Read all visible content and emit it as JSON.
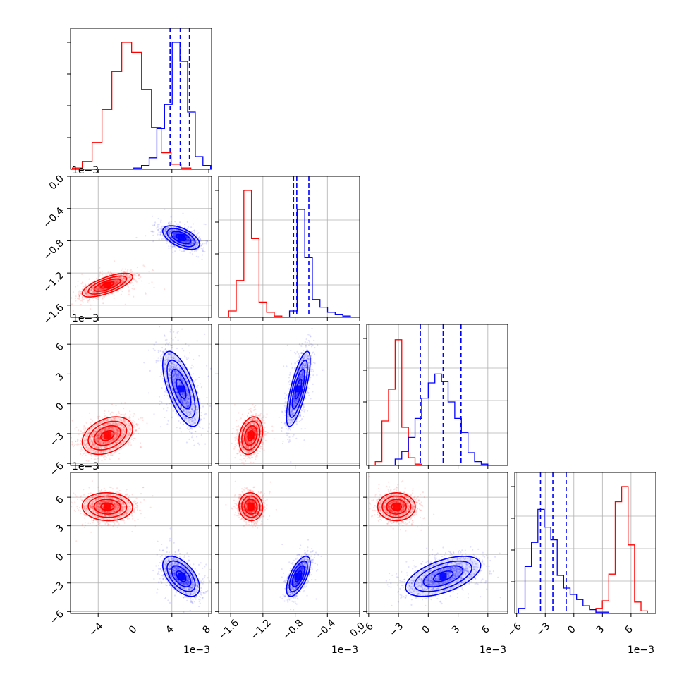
{
  "chart_data": {
    "type": "corner",
    "colors": {
      "red": "#ff0000",
      "blue": "#0000ff"
    },
    "series_order": [
      "red",
      "blue"
    ],
    "params": [
      {
        "id": "p0",
        "range": [
          -7,
          8.3
        ],
        "ticks": [
          -4,
          0,
          4,
          8
        ],
        "tick_labels": [
          "−4",
          "0",
          "4",
          "8"
        ],
        "offset": "1e−3"
      },
      {
        "id": "p1",
        "range": [
          -1.75,
          0.0
        ],
        "ticks": [
          -1.6,
          -1.2,
          -0.8,
          -0.4,
          0.0
        ],
        "tick_labels": [
          "−1.6",
          "−1.2",
          "−0.8",
          "−0.4",
          "0.0"
        ],
        "offset": "1e−3"
      },
      {
        "id": "p2",
        "range": [
          -6.2,
          8.0
        ],
        "ticks": [
          -6,
          -3,
          0,
          3,
          6
        ],
        "tick_labels": [
          "−6",
          "−3",
          "0",
          "3",
          "6"
        ],
        "offset": "1e−3"
      },
      {
        "id": "p3",
        "range": [
          -6.2,
          8.6
        ],
        "ticks": [
          -6,
          -3,
          0,
          3,
          6
        ],
        "tick_labels": [
          "−6",
          "−3",
          "0",
          "3",
          "6"
        ],
        "offset": "1e−3"
      }
    ],
    "distributions": {
      "red": {
        "mean": [
          -3.0,
          -1.35,
          -3.2,
          5.0
        ],
        "sd": [
          1.3,
          0.07,
          0.9,
          0.7
        ],
        "sd_p2_p0": 0.9
      },
      "blue": {
        "mean": [
          5.0,
          -0.76,
          1.5,
          -2.3
        ],
        "sd": [
          0.95,
          0.07,
          1.8,
          1.0
        ]
      }
    },
    "quantile_lines_blue": [
      [
        3.8,
        4.9,
        5.9
      ],
      [
        -0.82,
        -0.78,
        -0.63
      ],
      [
        -0.8,
        1.5,
        3.3
      ],
      [
        -3.5,
        -2.2,
        -0.8
      ]
    ],
    "histograms": {
      "p0": {
        "red": [
          0.01,
          0.06,
          0.21,
          0.47,
          0.77,
          1.0,
          0.92,
          0.63,
          0.33,
          0.13,
          0.04,
          0.01,
          0,
          0
        ],
        "blue": [
          0,
          0,
          0,
          0,
          0,
          0,
          0,
          0,
          0.01,
          0.03,
          0.09,
          0.32,
          0.51,
          1.0,
          0.85,
          0.45,
          0.1,
          0.03
        ],
        "bin_range": [
          -6.8,
          8.2
        ]
      },
      "p1": {
        "red": [
          0,
          0.05,
          0.29,
          1.0,
          0.62,
          0.12,
          0.04,
          0.01,
          0,
          0,
          0,
          0,
          0,
          0,
          0,
          0,
          0,
          0
        ],
        "blue": [
          0,
          0,
          0,
          0,
          0,
          0,
          0,
          0,
          0,
          0.05,
          0.85,
          0.47,
          0.14,
          0.08,
          0.04,
          0.02,
          0.01,
          0
        ],
        "bin_range": [
          -1.72,
          -0.02
        ]
      },
      "p2": {
        "red": [
          0,
          0.03,
          0.35,
          0.6,
          0.99,
          0.3,
          0.06,
          0.01,
          0,
          0,
          0,
          0,
          0,
          0,
          0,
          0,
          0,
          0,
          0,
          0,
          0
        ],
        "blue": [
          0,
          0,
          0,
          0,
          0.05,
          0.11,
          0.22,
          0.37,
          0.53,
          0.65,
          0.72,
          0.66,
          0.5,
          0.37,
          0.26,
          0.1,
          0.03,
          0.01,
          0,
          0,
          0
        ],
        "bin_range": [
          -6.0,
          8.0
        ]
      },
      "p3": {
        "red": [
          0,
          0,
          0,
          0,
          0,
          0,
          0,
          0,
          0,
          0,
          0,
          0,
          0.04,
          0.1,
          0.31,
          0.88,
          1.0,
          0.54,
          0.09,
          0.02,
          0
        ],
        "blue": [
          0.04,
          0.37,
          0.56,
          0.82,
          0.68,
          0.58,
          0.3,
          0.2,
          0.15,
          0.11,
          0.06,
          0.03,
          0.01,
          0.01,
          0,
          0,
          0,
          0,
          0,
          0,
          0
        ],
        "bin_range": [
          -5.8,
          8.4
        ]
      }
    },
    "correlations": {
      "red": {
        "p1_p0": 0.7,
        "p2_p0": 0.35,
        "p2_p1": 0.25,
        "p3_p0": -0.05,
        "p3_p1": -0.05,
        "p3_p2": 0.0
      },
      "blue": {
        "p1_p0": -0.55,
        "p2_p0": -0.65,
        "p2_p1": 0.75,
        "p3_p0": -0.55,
        "p3_p1": 0.65,
        "p3_p2": 0.55
      }
    }
  }
}
